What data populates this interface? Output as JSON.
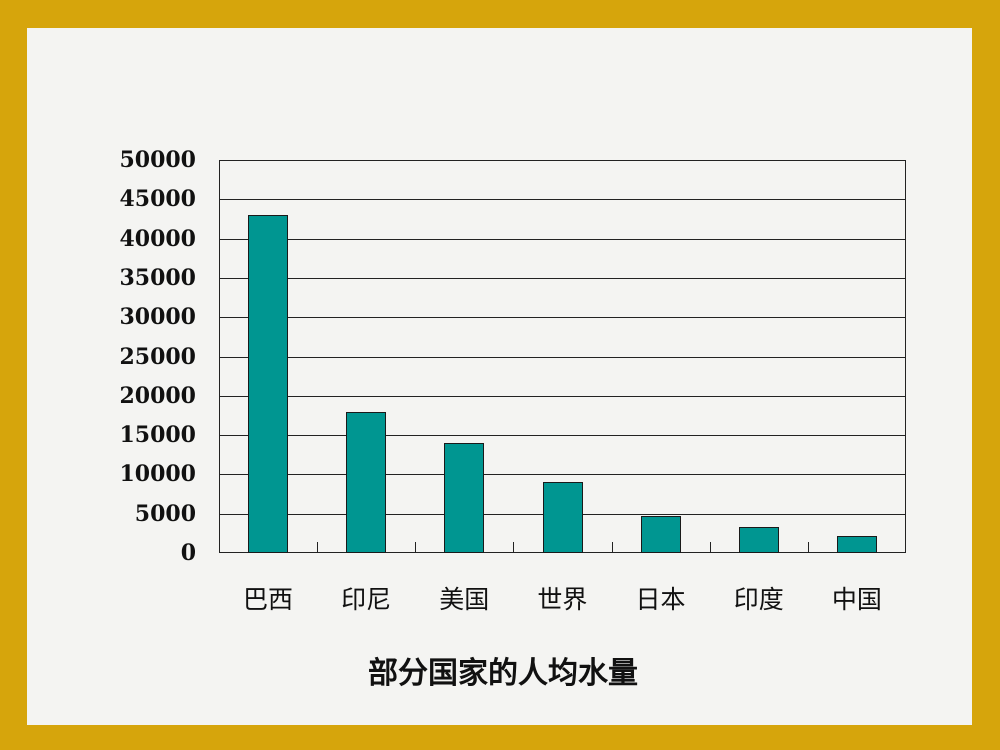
{
  "colors": {
    "border": "#d6a50c",
    "background": "#f4f4f2",
    "bar": "#009691"
  },
  "chart_data": {
    "type": "bar",
    "title": "部分国家的人均水量",
    "xlabel": "",
    "ylabel": "",
    "categories": [
      "巴西",
      "印尼",
      "美国",
      "世界",
      "日本",
      "印度",
      "中国"
    ],
    "values": [
      43000,
      18000,
      14000,
      9000,
      4700,
      3300,
      2200
    ],
    "ylim": [
      0,
      50000
    ],
    "yticks": [
      "50000",
      "45000",
      "40000",
      "35000",
      "30000",
      "25000",
      "20000",
      "15000",
      "10000",
      "5000",
      "0"
    ],
    "grid": true,
    "legend": "none"
  }
}
